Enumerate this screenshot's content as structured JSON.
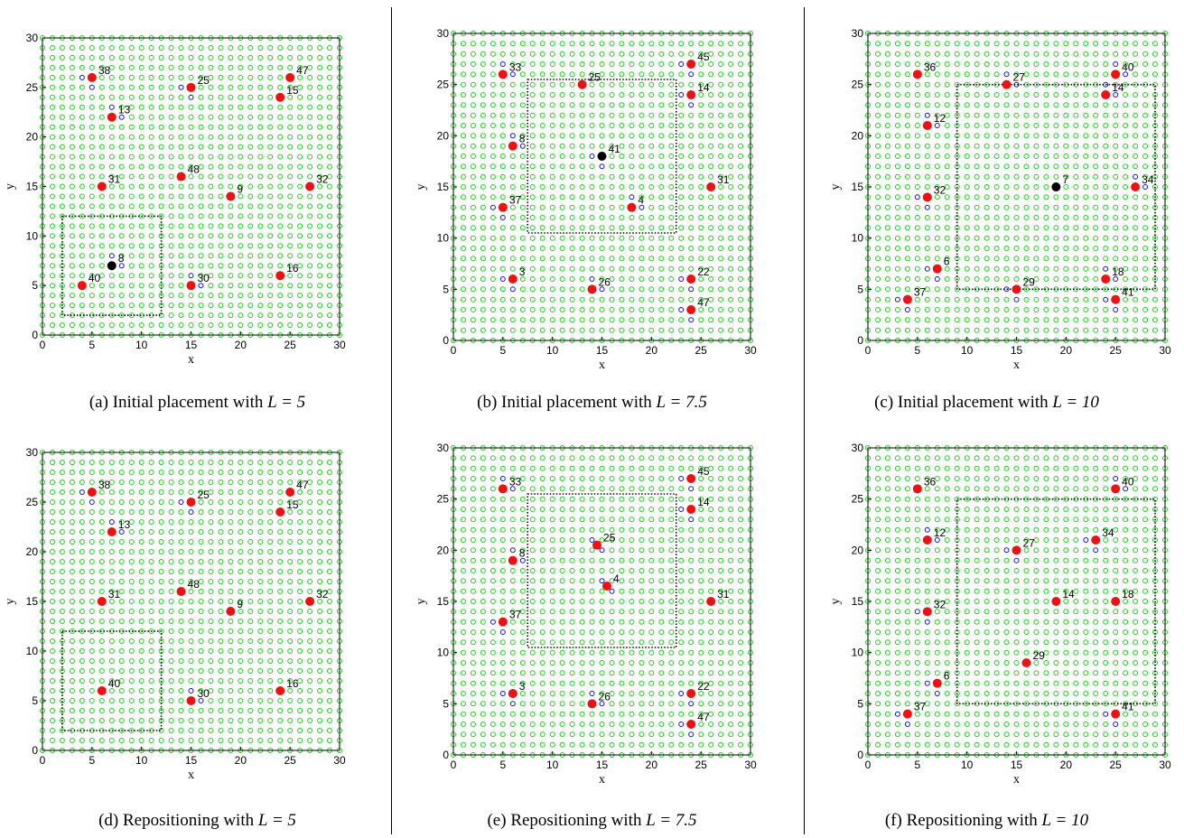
{
  "figure": {
    "background": "#ffffff",
    "colors": {
      "grid_point": "#22cc22",
      "highlight_point": "#1111cc",
      "node": "#ee1111",
      "node_special": "#000000",
      "region": "#000000"
    }
  },
  "chart_data": [
    {
      "type": "scatter",
      "caption": {
        "prefix": "(a) Initial placement with ",
        "math": "L = 5"
      },
      "xlabel": "x",
      "ylabel": "y",
      "xlim": [
        0,
        30
      ],
      "ylim": [
        0,
        30
      ],
      "xticks": [
        0,
        5,
        10,
        15,
        20,
        25,
        30
      ],
      "yticks": [
        0,
        5,
        10,
        15,
        20,
        25,
        30
      ],
      "region": {
        "x0": 2,
        "x1": 12,
        "y0": 2,
        "y1": 12,
        "style": "dotted"
      },
      "nodes": [
        {
          "x": 5,
          "y": 26,
          "label": "38"
        },
        {
          "x": 15,
          "y": 25,
          "label": "25"
        },
        {
          "x": 25,
          "y": 26,
          "label": "47"
        },
        {
          "x": 24,
          "y": 24,
          "label": "15"
        },
        {
          "x": 7,
          "y": 22,
          "label": "13"
        },
        {
          "x": 6,
          "y": 15,
          "label": "31"
        },
        {
          "x": 14,
          "y": 16,
          "label": "48"
        },
        {
          "x": 19,
          "y": 14,
          "label": "9"
        },
        {
          "x": 27,
          "y": 15,
          "label": "32"
        },
        {
          "x": 7,
          "y": 7,
          "label": "8",
          "special": true
        },
        {
          "x": 4,
          "y": 5,
          "label": "40"
        },
        {
          "x": 15,
          "y": 5,
          "label": "30"
        },
        {
          "x": 24,
          "y": 6,
          "label": "16"
        }
      ]
    },
    {
      "type": "scatter",
      "caption": {
        "prefix": "(b) Initial placement with ",
        "math": "L = 7.5"
      },
      "xlabel": "x",
      "ylabel": "y",
      "xlim": [
        0,
        30
      ],
      "ylim": [
        0,
        30
      ],
      "xticks": [
        0,
        5,
        10,
        15,
        20,
        25,
        30
      ],
      "yticks": [
        0,
        5,
        10,
        15,
        20,
        25,
        30
      ],
      "region": {
        "x0": 7.5,
        "x1": 22.5,
        "y0": 10.5,
        "y1": 25.5,
        "style": "dotted"
      },
      "nodes": [
        {
          "x": 24,
          "y": 27,
          "label": "45"
        },
        {
          "x": 5,
          "y": 26,
          "label": "33"
        },
        {
          "x": 13,
          "y": 25,
          "label": "25"
        },
        {
          "x": 24,
          "y": 24,
          "label": "14"
        },
        {
          "x": 6,
          "y": 19,
          "label": "8"
        },
        {
          "x": 15,
          "y": 18,
          "label": "41",
          "special": true
        },
        {
          "x": 26,
          "y": 15,
          "label": "31"
        },
        {
          "x": 5,
          "y": 13,
          "label": "37"
        },
        {
          "x": 18,
          "y": 13,
          "label": "4"
        },
        {
          "x": 6,
          "y": 6,
          "label": "3"
        },
        {
          "x": 14,
          "y": 5,
          "label": "26"
        },
        {
          "x": 24,
          "y": 6,
          "label": "22"
        },
        {
          "x": 24,
          "y": 3,
          "label": "47"
        }
      ]
    },
    {
      "type": "scatter",
      "caption": {
        "prefix": "(c) Initial placement with ",
        "math": "L = 10"
      },
      "xlabel": "x",
      "ylabel": "y",
      "xlim": [
        0,
        30
      ],
      "ylim": [
        0,
        30
      ],
      "xticks": [
        0,
        5,
        10,
        15,
        20,
        25,
        30
      ],
      "yticks": [
        0,
        5,
        10,
        15,
        20,
        25,
        30
      ],
      "region": {
        "x0": 9,
        "x1": 29,
        "y0": 5,
        "y1": 25,
        "style": "dotted"
      },
      "nodes": [
        {
          "x": 5,
          "y": 26,
          "label": "36"
        },
        {
          "x": 14,
          "y": 25,
          "label": "27"
        },
        {
          "x": 25,
          "y": 26,
          "label": "40"
        },
        {
          "x": 24,
          "y": 24,
          "label": "14"
        },
        {
          "x": 6,
          "y": 21,
          "label": "12"
        },
        {
          "x": 19,
          "y": 15,
          "label": "7",
          "special": true
        },
        {
          "x": 27,
          "y": 15,
          "label": "34"
        },
        {
          "x": 6,
          "y": 14,
          "label": "32"
        },
        {
          "x": 7,
          "y": 7,
          "label": "6"
        },
        {
          "x": 24,
          "y": 6,
          "label": "18"
        },
        {
          "x": 4,
          "y": 4,
          "label": "37"
        },
        {
          "x": 15,
          "y": 5,
          "label": "29"
        },
        {
          "x": 25,
          "y": 4,
          "label": "41"
        }
      ]
    },
    {
      "type": "scatter",
      "caption": {
        "prefix": "(d) Repositioning with ",
        "math": "L = 5"
      },
      "xlabel": "x",
      "ylabel": "y",
      "xlim": [
        0,
        30
      ],
      "ylim": [
        0,
        30
      ],
      "xticks": [
        0,
        5,
        10,
        15,
        20,
        25,
        30
      ],
      "yticks": [
        0,
        5,
        10,
        15,
        20,
        25,
        30
      ],
      "region": {
        "x0": 2,
        "x1": 12,
        "y0": 2,
        "y1": 12,
        "style": "dotted"
      },
      "nodes": [
        {
          "x": 5,
          "y": 26,
          "label": "38"
        },
        {
          "x": 15,
          "y": 25,
          "label": "25"
        },
        {
          "x": 25,
          "y": 26,
          "label": "47"
        },
        {
          "x": 24,
          "y": 24,
          "label": "15"
        },
        {
          "x": 7,
          "y": 22,
          "label": "13"
        },
        {
          "x": 6,
          "y": 15,
          "label": "31"
        },
        {
          "x": 14,
          "y": 16,
          "label": "48"
        },
        {
          "x": 19,
          "y": 14,
          "label": "9"
        },
        {
          "x": 27,
          "y": 15,
          "label": "32"
        },
        {
          "x": 6,
          "y": 6,
          "label": "40"
        },
        {
          "x": 15,
          "y": 5,
          "label": "30"
        },
        {
          "x": 24,
          "y": 6,
          "label": "16"
        }
      ]
    },
    {
      "type": "scatter",
      "caption": {
        "prefix": "(e) Repositioning with ",
        "math": "L = 7.5"
      },
      "xlabel": "x",
      "ylabel": "y",
      "xlim": [
        0,
        30
      ],
      "ylim": [
        0,
        30
      ],
      "xticks": [
        0,
        5,
        10,
        15,
        20,
        25,
        30
      ],
      "yticks": [
        0,
        5,
        10,
        15,
        20,
        25,
        30
      ],
      "region": {
        "x0": 7.5,
        "x1": 22.5,
        "y0": 10.5,
        "y1": 25.5,
        "style": "dotted"
      },
      "nodes": [
        {
          "x": 24,
          "y": 27,
          "label": "45"
        },
        {
          "x": 5,
          "y": 26,
          "label": "33"
        },
        {
          "x": 24,
          "y": 24,
          "label": "14"
        },
        {
          "x": 14.5,
          "y": 20.5,
          "label": "25"
        },
        {
          "x": 6,
          "y": 19,
          "label": "8"
        },
        {
          "x": 15.5,
          "y": 16.5,
          "label": "4"
        },
        {
          "x": 26,
          "y": 15,
          "label": "31"
        },
        {
          "x": 5,
          "y": 13,
          "label": "37"
        },
        {
          "x": 6,
          "y": 6,
          "label": "3"
        },
        {
          "x": 14,
          "y": 5,
          "label": "26"
        },
        {
          "x": 24,
          "y": 6,
          "label": "22"
        },
        {
          "x": 24,
          "y": 3,
          "label": "47"
        }
      ]
    },
    {
      "type": "scatter",
      "caption": {
        "prefix": "(f) Repositioning with ",
        "math": "L = 10"
      },
      "xlabel": "x",
      "ylabel": "y",
      "xlim": [
        0,
        30
      ],
      "ylim": [
        0,
        30
      ],
      "xticks": [
        0,
        5,
        10,
        15,
        20,
        25,
        30
      ],
      "yticks": [
        0,
        5,
        10,
        15,
        20,
        25,
        30
      ],
      "region": {
        "x0": 9,
        "x1": 29,
        "y0": 5,
        "y1": 25,
        "style": "dotted"
      },
      "nodes": [
        {
          "x": 5,
          "y": 26,
          "label": "36"
        },
        {
          "x": 25,
          "y": 26,
          "label": "40"
        },
        {
          "x": 6,
          "y": 21,
          "label": "12"
        },
        {
          "x": 15,
          "y": 20,
          "label": "27"
        },
        {
          "x": 23,
          "y": 21,
          "label": "34"
        },
        {
          "x": 6,
          "y": 14,
          "label": "32"
        },
        {
          "x": 19,
          "y": 15,
          "label": "14"
        },
        {
          "x": 25,
          "y": 15,
          "label": "18"
        },
        {
          "x": 16,
          "y": 9,
          "label": "29"
        },
        {
          "x": 7,
          "y": 7,
          "label": "6"
        },
        {
          "x": 4,
          "y": 4,
          "label": "37"
        },
        {
          "x": 25,
          "y": 4,
          "label": "41"
        }
      ]
    }
  ]
}
